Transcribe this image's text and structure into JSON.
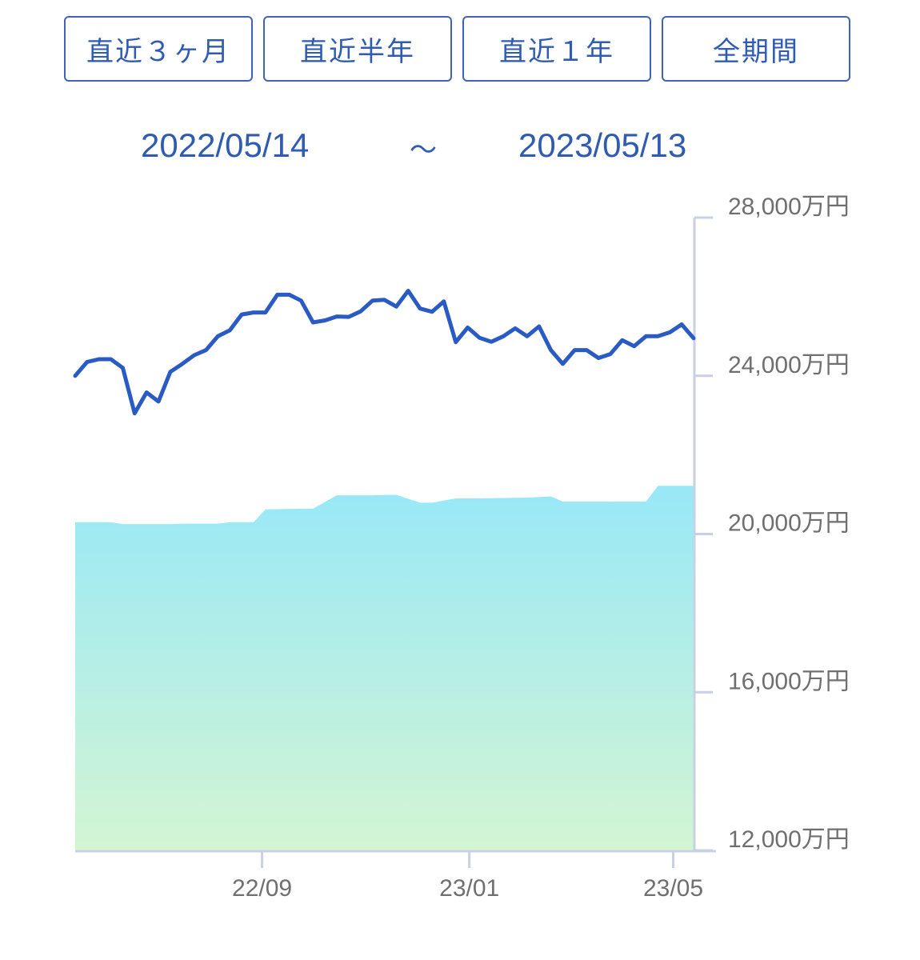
{
  "period_tabs": [
    {
      "label": "直近３ヶ月"
    },
    {
      "label": "直近半年"
    },
    {
      "label": "直近１年"
    },
    {
      "label": "全期間"
    }
  ],
  "date_range": {
    "start": "2022/05/14",
    "separator": "〜",
    "end": "2023/05/13"
  },
  "colors": {
    "accent": "#2f5bb3",
    "line": "#2a5bc4",
    "area_top": "#98e8f8",
    "area_bottom": "#d3f5d3",
    "axis": "#c9d0e3",
    "tick_text": "#6f6f6f"
  },
  "chart_data": {
    "type": "area",
    "ylim": [
      12000,
      28000
    ],
    "y_unit": "万円",
    "y_ticks": [
      {
        "value": 28000,
        "label": "28,000万円"
      },
      {
        "value": 24000,
        "label": "24,000万円"
      },
      {
        "value": 20000,
        "label": "20,000万円"
      },
      {
        "value": 16000,
        "label": "16,000万円"
      },
      {
        "value": 12000,
        "label": "12,000万円"
      }
    ],
    "x_range": [
      "2022-05-14",
      "2023-05-13"
    ],
    "x_ticks": [
      {
        "date": "2022-09-01",
        "label": "22/09"
      },
      {
        "date": "2023-01-01",
        "label": "23/01"
      },
      {
        "date": "2023-05-01",
        "label": "23/05"
      }
    ],
    "series": [
      {
        "kind": "line",
        "x": [
          "2022-05-14",
          "2022-05-21",
          "2022-05-28",
          "2022-06-04",
          "2022-06-11",
          "2022-06-18",
          "2022-06-25",
          "2022-07-02",
          "2022-07-09",
          "2022-07-16",
          "2022-07-23",
          "2022-07-30",
          "2022-08-06",
          "2022-08-13",
          "2022-08-20",
          "2022-08-27",
          "2022-09-03",
          "2022-09-10",
          "2022-09-17",
          "2022-09-24",
          "2022-10-01",
          "2022-10-08",
          "2022-10-15",
          "2022-10-22",
          "2022-10-29",
          "2022-11-05",
          "2022-11-12",
          "2022-11-19",
          "2022-11-26",
          "2022-12-03",
          "2022-12-10",
          "2022-12-17",
          "2022-12-24",
          "2022-12-31",
          "2023-01-07",
          "2023-01-14",
          "2023-01-21",
          "2023-01-28",
          "2023-02-04",
          "2023-02-11",
          "2023-02-18",
          "2023-02-25",
          "2023-03-04",
          "2023-03-11",
          "2023-03-18",
          "2023-03-25",
          "2023-04-01",
          "2023-04-08",
          "2023-04-15",
          "2023-04-22",
          "2023-04-29",
          "2023-05-06",
          "2023-05-13"
        ],
        "values": [
          24000,
          24350,
          24420,
          24420,
          24200,
          23050,
          23580,
          23350,
          24100,
          24300,
          24520,
          24650,
          25000,
          25150,
          25550,
          25600,
          25600,
          26050,
          26050,
          25900,
          25350,
          25400,
          25500,
          25490,
          25630,
          25900,
          25920,
          25750,
          26150,
          25700,
          25620,
          25880,
          24850,
          25220,
          24960,
          24860,
          25000,
          25200,
          25000,
          25250,
          24650,
          24300,
          24650,
          24650,
          24450,
          24550,
          24900,
          24750,
          25000,
          25000,
          25100,
          25300,
          24950
        ]
      },
      {
        "kind": "area",
        "x": [
          "2022-05-14",
          "2022-06-04",
          "2022-06-11",
          "2022-07-09",
          "2022-07-16",
          "2022-08-06",
          "2022-08-13",
          "2022-08-27",
          "2022-09-03",
          "2022-09-24",
          "2022-10-01",
          "2022-10-15",
          "2022-11-05",
          "2022-11-12",
          "2022-11-19",
          "2022-12-03",
          "2022-12-10",
          "2022-12-24",
          "2023-01-07",
          "2023-02-04",
          "2023-02-18",
          "2023-02-25",
          "2023-04-01",
          "2023-04-15",
          "2023-04-22",
          "2023-05-13"
        ],
        "values": [
          20300,
          20300,
          20250,
          20250,
          20260,
          20260,
          20300,
          20300,
          20620,
          20640,
          20640,
          20980,
          20980,
          20990,
          20990,
          20790,
          20790,
          20900,
          20900,
          20920,
          20950,
          20820,
          20820,
          20820,
          21220,
          21220
        ]
      }
    ]
  }
}
